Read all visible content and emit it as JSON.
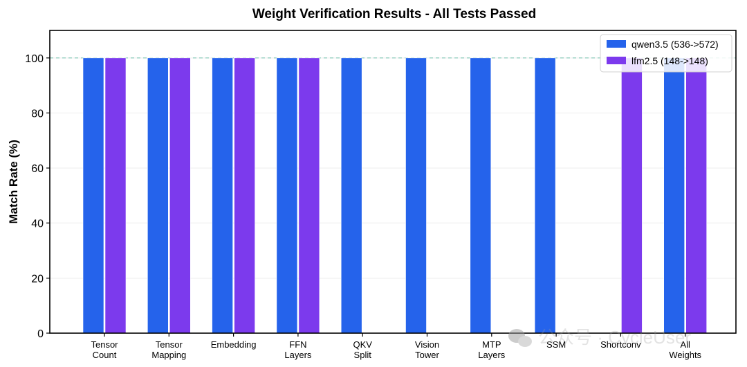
{
  "chart_data": {
    "type": "bar",
    "title": "Weight Verification Results - All Tests Passed",
    "xlabel": "",
    "ylabel": "Match Rate (%)",
    "ylim": [
      0,
      110
    ],
    "yticks": [
      0,
      20,
      40,
      60,
      80,
      100
    ],
    "reference_line": 100,
    "grid": true,
    "legend_position": "top-right",
    "categories": [
      [
        "Tensor",
        "Count"
      ],
      [
        "Tensor",
        "Mapping"
      ],
      [
        "Embedding"
      ],
      [
        "FFN",
        "Layers"
      ],
      [
        "QKV",
        "Split"
      ],
      [
        "Vision",
        "Tower"
      ],
      [
        "MTP",
        "Layers"
      ],
      [
        "SSM"
      ],
      [
        "Shortconv"
      ],
      [
        "All",
        "Weights"
      ]
    ],
    "series": [
      {
        "name": "qwen3.5 (536->572)",
        "color": "#2563eb",
        "values": [
          100,
          100,
          100,
          100,
          100,
          100,
          100,
          100,
          null,
          100
        ]
      },
      {
        "name": "lfm2.5 (148->148)",
        "color": "#7c3aed",
        "values": [
          100,
          100,
          100,
          100,
          null,
          null,
          null,
          null,
          100,
          100
        ]
      }
    ]
  },
  "watermark": {
    "text": "公众号 · CycleUser",
    "icon": "wechat-icon"
  }
}
